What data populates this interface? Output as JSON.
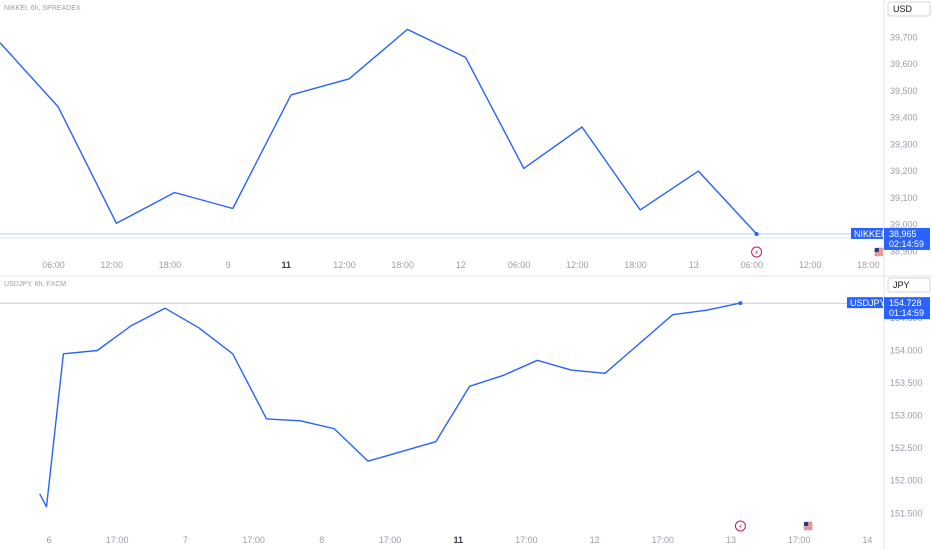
{
  "colors": {
    "line": "#2962ff",
    "tag": "#2962ff",
    "axis_text": "#9a9ea8",
    "event_red": "#c2185b"
  },
  "icons": [
    "earnings-icon",
    "us-flag-icon"
  ],
  "chart_data": [
    {
      "type": "line",
      "title": "NIKKEI, 6h, SPREADEX",
      "currency": "USD",
      "symbol": "NIKKEI",
      "last_label": "38,965",
      "countdown": "02:14:59",
      "ylim": [
        38905,
        39765
      ],
      "y_ticks": [
        38900,
        39000,
        39100,
        39200,
        39300,
        39400,
        39500,
        39600,
        39700
      ],
      "y_tick_labels": [
        "38,900",
        "39,000",
        "39,100",
        "39,200",
        "39,300",
        "39,400",
        "39,500",
        "39,600",
        "39,700"
      ],
      "x_tick_labels": [
        "06:00",
        "12:00",
        "18:00",
        "9",
        "11",
        "12:00",
        "18:00",
        "12",
        "06:00",
        "12:00",
        "18:00",
        "13",
        "06:00",
        "12:00",
        "18:00"
      ],
      "x_tick_bold": [
        false,
        false,
        false,
        false,
        true,
        false,
        false,
        false,
        false,
        false,
        false,
        false,
        false,
        false,
        false
      ],
      "x": [
        -0.1,
        0.9,
        1.9,
        2.9,
        3.9,
        4.9,
        5.9,
        6.9,
        7.9,
        8.9,
        9.9,
        10.9,
        11.9,
        12.9
      ],
      "values": [
        39680,
        39440,
        39005,
        39120,
        39060,
        39485,
        39545,
        39730,
        39625,
        39210,
        39365,
        39055,
        39200,
        38965
      ],
      "event_marks": [
        {
          "x": 12.9,
          "icon": "earnings-icon"
        },
        {
          "x": 15.0,
          "icon": "us-flag-icon"
        }
      ]
    },
    {
      "type": "line",
      "title": "USDJPY, 6h, FXCM",
      "currency": "JPY",
      "symbol": "USDJPY",
      "last_label": "154.728",
      "countdown": "01:14:59",
      "ylim": [
        151.32,
        154.93
      ],
      "y_ticks": [
        151.5,
        152.0,
        152.5,
        153.0,
        153.5,
        154.0,
        154.5
      ],
      "y_tick_labels": [
        "151.500",
        "152.000",
        "152.500",
        "153.000",
        "153.500",
        "154.000",
        "154.500"
      ],
      "x_tick_labels": [
        "6",
        "17:00",
        "7",
        "17:00",
        "8",
        "17:00",
        "11",
        "17:00",
        "12",
        "17:00",
        "13",
        "17:00",
        "14"
      ],
      "x_tick_bold": [
        false,
        false,
        false,
        false,
        false,
        false,
        true,
        false,
        false,
        false,
        false,
        false,
        false
      ],
      "x": [
        4.6,
        4.8,
        5.3,
        6.3,
        7.3,
        8.3,
        9.3,
        10.3,
        11.3,
        12.3,
        13.3,
        14.3,
        15.3,
        16.3,
        17.3,
        18.3,
        19.3,
        20.3,
        21.3,
        22.3
      ],
      "values": [
        151.8,
        151.6,
        153.95,
        154.0,
        154.38,
        154.65,
        154.35,
        153.95,
        152.95,
        152.92,
        152.8,
        152.3,
        152.45,
        152.6,
        153.45,
        153.62,
        153.85,
        153.7,
        153.65,
        154.1
      ],
      "values_tail": {
        "x": [
          23.3,
          24.3,
          25.3
        ],
        "values": [
          154.55,
          154.62,
          154.728
        ]
      },
      "event_marks": [
        {
          "x": 25.3,
          "icon": "earnings-icon"
        },
        {
          "x": 27.3,
          "icon": "us-flag-icon"
        }
      ]
    }
  ]
}
